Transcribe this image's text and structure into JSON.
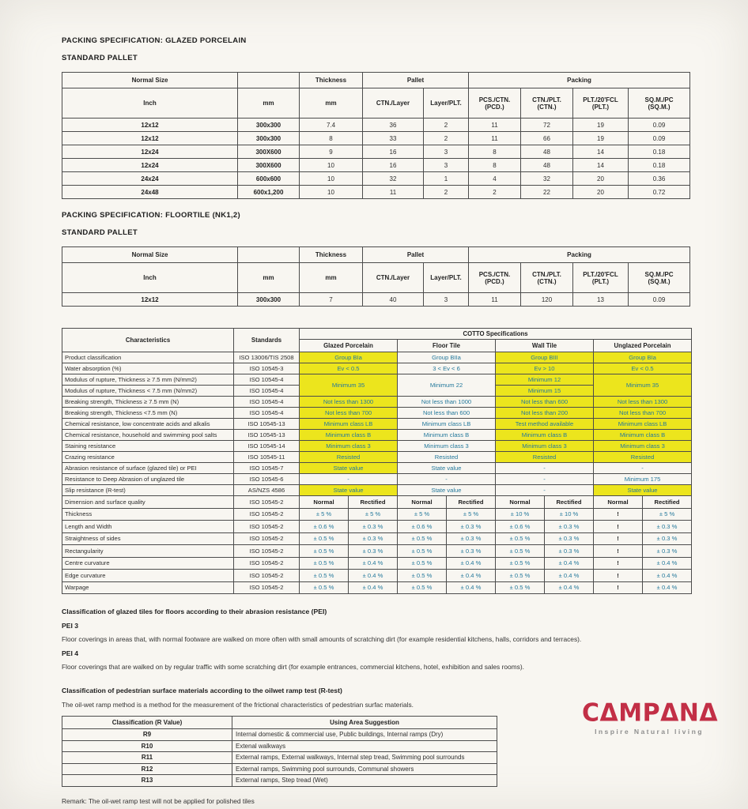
{
  "colors": {
    "highlight_yellow": "#ece51d",
    "value_text_blue": "#25799c",
    "logo_red": "#c22f46",
    "page_background": "#f8f6f1"
  },
  "sections": {
    "s1_title": "PACKING SPECIFICATION: GLAZED PORCELAIN",
    "s1_subtitle": "STANDARD PALLET",
    "s2_title": "PACKING SPECIFICATION: FLOORTILE (NK1,2)",
    "s2_subtitle": "STANDARD PALLET"
  },
  "packing_headers": {
    "normal_size": "Normal Size",
    "thickness": "Thickness",
    "pallet": "Pallet",
    "packing": "Packing",
    "inch": "Inch",
    "mm": "mm",
    "mm2": "mm",
    "ctn_layer": "CTN./Layer",
    "layer_plt": "Layer/PLT.",
    "pcs_ctn": "PCS./CTN.",
    "pcs_ctn_sub": "(PCD.)",
    "ctn_plt": "CTN./PLT.",
    "ctn_plt_sub": "(CTN.)",
    "plt_fcl": "PLT./20'FCL",
    "plt_fcl_sub": "(PLT.)",
    "sqm_pc": "SQ.M./PC",
    "sqm_pc_sub": "(SQ.M.)"
  },
  "table1_rows": [
    [
      "12x12",
      "300x300",
      "7.4",
      "36",
      "2",
      "11",
      "72",
      "19",
      "0.09"
    ],
    [
      "12x12",
      "300x300",
      "8",
      "33",
      "2",
      "11",
      "66",
      "19",
      "0.09"
    ],
    [
      "12x24",
      "300X600",
      "9",
      "16",
      "3",
      "8",
      "48",
      "14",
      "0.18"
    ],
    [
      "12x24",
      "300X600",
      "10",
      "16",
      "3",
      "8",
      "48",
      "14",
      "0.18"
    ],
    [
      "24x24",
      "600x600",
      "10",
      "32",
      "1",
      "4",
      "32",
      "20",
      "0.36"
    ],
    [
      "24x48",
      "600x1,200",
      "10",
      "11",
      "2",
      "2",
      "22",
      "20",
      "0.72"
    ]
  ],
  "table2_rows": [
    [
      "12x12",
      "300x300",
      "7",
      "40",
      "3",
      "11",
      "120",
      "13",
      "0.09"
    ]
  ],
  "cotto": {
    "col_characteristics": "Characteristics",
    "col_standards": "Standards",
    "title": "COTTO Specifications",
    "products": [
      "Glazed Porcelain",
      "Floor Tile",
      "Wall Tile",
      "Unglazed Porcelain"
    ],
    "rows": [
      {
        "c": "Product classification",
        "s": "ISO 13006/TIS 2508",
        "v": [
          {
            "t": "Group BIa",
            "y": 1
          },
          {
            "t": "Group BIIa",
            "y": 0
          },
          {
            "t": "Group BIII",
            "y": 1
          },
          {
            "t": "Group BIa",
            "y": 1
          }
        ]
      },
      {
        "c": "Water absorption (%)",
        "s": "ISO 10545-3",
        "v": [
          {
            "t": "Ev < 0.5",
            "y": 1
          },
          {
            "t": "3 < Ev < 6",
            "y": 0
          },
          {
            "t": "Ev > 10",
            "y": 1
          },
          {
            "t": "Ev < 0.5",
            "y": 1
          }
        ]
      },
      {
        "c": "Modulus of rupture, Thickness ≥ 7.5 mm (N/mm2)",
        "s": "ISO 10545-4",
        "v": [
          {
            "t": "Minimum 35",
            "y": 1,
            "rs": 2
          },
          {
            "t": "Minimum 22",
            "y": 0,
            "rs": 2
          },
          {
            "t": "Minimum 12",
            "y": 1
          },
          {
            "t": "Minimum 35",
            "y": 1,
            "rs": 2
          }
        ]
      },
      {
        "c": "Modulus of rupture, Thickness < 7.5 mm (N/mm2)",
        "s": "ISO 10545-4",
        "v": [
          null,
          null,
          {
            "t": "Minimum 15",
            "y": 1
          },
          null
        ]
      },
      {
        "c": "Breaking strength, Thickness ≥ 7.5 mm (N)",
        "s": "ISO 10545-4",
        "v": [
          {
            "t": "Not less than 1300",
            "y": 1
          },
          {
            "t": "Not less than 1000",
            "y": 0
          },
          {
            "t": "Not less than 600",
            "y": 1
          },
          {
            "t": "Not less than 1300",
            "y": 1
          }
        ]
      },
      {
        "c": "Breaking strength, Thickness <7.5 mm (N)",
        "s": "ISO 10545-4",
        "v": [
          {
            "t": "Not less than 700",
            "y": 1
          },
          {
            "t": "Not less than 600",
            "y": 0
          },
          {
            "t": "Not less than 200",
            "y": 1
          },
          {
            "t": "Not less than 700",
            "y": 1
          }
        ]
      },
      {
        "c": "Chemical resistance, low concentrate acids and alkalis",
        "s": "ISO 10545-13",
        "v": [
          {
            "t": "Minimum class LB",
            "y": 1
          },
          {
            "t": "Minimum class LB",
            "y": 0
          },
          {
            "t": "Test method available",
            "y": 1
          },
          {
            "t": "Minimum class LB",
            "y": 1
          }
        ]
      },
      {
        "c": "Chemical resistance, household and swimming pool salts",
        "s": "ISO 10545-13",
        "v": [
          {
            "t": "Minimum class B",
            "y": 1
          },
          {
            "t": "Minimum class B",
            "y": 0
          },
          {
            "t": "Minimum class B",
            "y": 1
          },
          {
            "t": "Minimum class B",
            "y": 1
          }
        ]
      },
      {
        "c": "Staining resistance",
        "s": "ISO 10545-14",
        "v": [
          {
            "t": "Minimum class 3",
            "y": 1
          },
          {
            "t": "Minimum class 3",
            "y": 0
          },
          {
            "t": "Minimum class 3",
            "y": 1
          },
          {
            "t": "Minimum class 3",
            "y": 1
          }
        ]
      },
      {
        "c": "Crazing resistance",
        "s": "ISO 10545-11",
        "v": [
          {
            "t": "Resisted",
            "y": 1
          },
          {
            "t": "Resisted",
            "y": 0
          },
          {
            "t": "Resisted",
            "y": 1
          },
          {
            "t": "Resisted",
            "y": 1
          }
        ]
      },
      {
        "c": "Abrasion resistance of surface (glazed tile) or PEI",
        "s": "ISO 10545-7",
        "v": [
          {
            "t": "State value",
            "y": 1
          },
          {
            "t": "State value",
            "y": 0
          },
          {
            "t": "-",
            "y": 0
          },
          {
            "t": "-",
            "y": 0
          }
        ]
      },
      {
        "c": "Resistance to Deep Abrasion of unglazed tile",
        "s": "ISO 10545-6",
        "v": [
          {
            "t": "-",
            "y": 0
          },
          {
            "t": "-",
            "y": 0
          },
          {
            "t": "-",
            "y": 0
          },
          {
            "t": "Minimum 175",
            "y": 0
          }
        ]
      },
      {
        "c": "Slip resistance (R-test)",
        "s": "AS/NZS 4586",
        "v": [
          {
            "t": "State value",
            "y": 1
          },
          {
            "t": "State value",
            "y": 0
          },
          {
            "t": "-",
            "y": 0
          },
          {
            "t": "State value",
            "y": 1
          }
        ]
      }
    ],
    "dim_header": {
      "c": "Dimension and surface quality",
      "s": "ISO 10545-2",
      "normal": "Normal",
      "rectified": "Rectified"
    },
    "dim_rows": [
      {
        "c": "Thickness",
        "s": "ISO 10545-2",
        "v": [
          "± 5 %",
          "± 5 %",
          "± 5 %",
          "± 5 %",
          "± 10 %",
          "± 10 %",
          "!",
          "± 5 %"
        ]
      },
      {
        "c": "Length and Width",
        "s": "ISO 10545-2",
        "v": [
          "± 0.6 %",
          "± 0.3 %",
          "± 0.6 %",
          "± 0.3 %",
          "± 0.6 %",
          "± 0.3 %",
          "!",
          "± 0.3 %"
        ]
      },
      {
        "c": "Straightness of sides",
        "s": "ISO 10545-2",
        "v": [
          "± 0.5 %",
          "± 0.3 %",
          "± 0.5 %",
          "± 0.3 %",
          "± 0.5 %",
          "± 0.3 %",
          "!",
          "± 0.3 %"
        ]
      },
      {
        "c": "Rectangularity",
        "s": "ISO 10545-2",
        "v": [
          "± 0.5 %",
          "± 0.3 %",
          "± 0.5 %",
          "± 0.3 %",
          "± 0.5 %",
          "± 0.3 %",
          "!",
          "± 0.3 %"
        ]
      },
      {
        "c": "Centre curvature",
        "s": "ISO 10545-2",
        "v": [
          "± 0.5 %",
          "± 0.4 %",
          "± 0.5 %",
          "± 0.4 %",
          "± 0.5 %",
          "± 0.4 %",
          "!",
          "± 0.4 %"
        ]
      },
      {
        "c": "Edge curvature",
        "s": "ISO 10545-2",
        "v": [
          "± 0.5 %",
          "± 0.4 %",
          "± 0.5 %",
          "± 0.4 %",
          "± 0.5 %",
          "± 0.4 %",
          "!",
          "± 0.4 %"
        ]
      },
      {
        "c": "Warpage",
        "s": "ISO 10545-2",
        "v": [
          "± 0.5 %",
          "± 0.4 %",
          "± 0.5 %",
          "± 0.4 %",
          "± 0.5 %",
          "± 0.4 %",
          "!",
          "± 0.4 %"
        ]
      }
    ]
  },
  "pei": {
    "title": "Classification of glazed tiles for floors according to their abrasion resistance (PEI)",
    "items": [
      {
        "label": "PEI 3",
        "text": "Floor coverings in areas that, with normal footware are walked on more often with small amounts of scratching dirt (for example residential kitchens, halls, corridors and terraces)."
      },
      {
        "label": "PEI 4",
        "text": "Floor coverings that are walked on by regular traffic with some scratching dirt (for example entrances, commercial kitchens, hotel, exhibition and sales rooms)."
      }
    ]
  },
  "rtest_intro": {
    "title": "Classification of pedestrian surface materials according to the oilwet ramp test (R-test)",
    "text": "The oil-wet ramp method is a method for the measurement of the frictional characteristics of pedestrian surfac materials."
  },
  "rtest": {
    "headers": [
      "Classification (R Value)",
      "Using Area Suggestion"
    ],
    "rows": [
      [
        "R9",
        "Internal domestic & commercial use, Public buildings, Internal ramps (Dry)"
      ],
      [
        "R10",
        "Extenal walkways"
      ],
      [
        "R11",
        "External ramps, External walkways, Internal step tread, Swimming pool surrounds"
      ],
      [
        "R12",
        "External ramps, Swimming pool surrounds, Communal showers"
      ],
      [
        "R13",
        "External ramps, Step tread (Wet)"
      ]
    ],
    "remark": "Remark: The oil-wet ramp test will not be applied for polished tiles"
  },
  "logo": {
    "text": "CAMPANA",
    "tagline": "Inspire Natural living"
  }
}
